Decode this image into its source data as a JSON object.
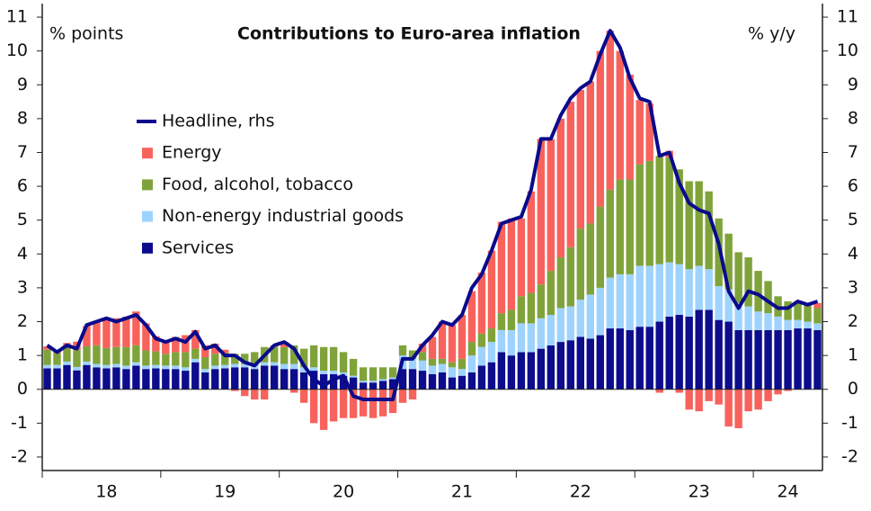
{
  "chart_data": {
    "type": "bar",
    "title": "Contributions to Euro-area inflation",
    "ylabel": "% points",
    "y2label": "% y/y",
    "categories": [
      null,
      null,
      null,
      null,
      null,
      null,
      "18",
      null,
      null,
      null,
      null,
      null,
      null,
      null,
      null,
      null,
      null,
      null,
      "19",
      null,
      null,
      null,
      null,
      null,
      null,
      null,
      null,
      null,
      null,
      null,
      "20",
      null,
      null,
      null,
      null,
      null,
      null,
      null,
      null,
      null,
      null,
      null,
      "21",
      null,
      null,
      null,
      null,
      null,
      null,
      null,
      null,
      null,
      null,
      null,
      "22",
      null,
      null,
      null,
      null,
      null,
      null,
      null,
      null,
      null,
      null,
      null,
      "23",
      null,
      null,
      null,
      null,
      null,
      null,
      null,
      null,
      "24",
      null,
      null,
      null
    ],
    "ylim": [
      -2.4,
      11.4
    ],
    "yticks": [
      -2,
      -1,
      0,
      1,
      2,
      3,
      4,
      5,
      6,
      7,
      8,
      9,
      10,
      11
    ],
    "y2lim": [
      -2.4,
      11.4
    ],
    "y2ticks": [
      -2,
      -1,
      0,
      1,
      2,
      3,
      4,
      5,
      6,
      7,
      8,
      9,
      10,
      11
    ],
    "series": [
      {
        "name": "Headline, rhs",
        "color": "#0a0a8c",
        "axis": "y2",
        "values": [
          1.3,
          1.1,
          1.3,
          1.2,
          1.9,
          2.0,
          2.1,
          2.0,
          2.1,
          2.2,
          1.9,
          1.5,
          1.4,
          1.5,
          1.4,
          1.7,
          1.2,
          1.3,
          1.0,
          1.0,
          0.8,
          0.7,
          1.0,
          1.3,
          1.4,
          1.2,
          0.7,
          0.3,
          0.1,
          0.3,
          0.4,
          -0.2,
          -0.3,
          -0.3,
          -0.3,
          -0.3,
          0.9,
          0.9,
          1.3,
          1.6,
          2.0,
          1.9,
          2.2,
          3.0,
          3.4,
          4.1,
          4.9,
          5.0,
          5.1,
          5.9,
          7.4,
          7.4,
          8.1,
          8.6,
          8.9,
          9.1,
          9.9,
          10.6,
          10.1,
          9.2,
          8.6,
          8.5,
          6.9,
          7.0,
          6.1,
          5.5,
          5.3,
          5.2,
          4.3,
          2.9,
          2.4,
          2.9,
          2.8,
          2.6,
          2.4,
          2.4,
          2.6,
          2.5,
          2.6
        ]
      },
      {
        "name": "Energy",
        "color": "#f8625c",
        "values": [
          0.1,
          0.05,
          0.1,
          0.25,
          0.6,
          0.7,
          0.9,
          0.85,
          0.9,
          1.0,
          0.8,
          0.45,
          0.35,
          0.45,
          0.5,
          0.55,
          0.35,
          0.3,
          0.1,
          -0.05,
          -0.2,
          -0.3,
          -0.3,
          0.05,
          0.15,
          -0.1,
          -0.4,
          -1.0,
          -1.2,
          -0.95,
          -0.85,
          -0.85,
          -0.8,
          -0.85,
          -0.8,
          -0.7,
          -0.4,
          -0.3,
          0.25,
          0.65,
          1.1,
          1.1,
          1.3,
          1.5,
          1.8,
          2.3,
          2.7,
          2.7,
          2.3,
          3.0,
          4.3,
          3.9,
          4.1,
          4.3,
          4.1,
          4.2,
          4.6,
          4.7,
          3.8,
          3.1,
          1.9,
          1.7,
          -0.1,
          0.2,
          -0.1,
          -0.6,
          -0.65,
          -0.35,
          -0.45,
          -1.1,
          -1.15,
          -0.65,
          -0.6,
          -0.35,
          -0.15,
          -0.05,
          0.05,
          0.05,
          0.15
        ]
      },
      {
        "name": "Food, alcohol, tobacco",
        "color": "#7fa33a",
        "values": [
          0.45,
          0.35,
          0.45,
          0.5,
          0.45,
          0.55,
          0.5,
          0.5,
          0.55,
          0.5,
          0.45,
          0.4,
          0.35,
          0.4,
          0.45,
          0.3,
          0.35,
          0.35,
          0.35,
          0.3,
          0.3,
          0.4,
          0.45,
          0.45,
          0.5,
          0.55,
          0.55,
          0.65,
          0.7,
          0.7,
          0.6,
          0.5,
          0.4,
          0.4,
          0.35,
          0.3,
          0.3,
          0.25,
          0.25,
          0.2,
          0.15,
          0.15,
          0.3,
          0.4,
          0.4,
          0.4,
          0.5,
          0.6,
          0.8,
          0.9,
          1.0,
          1.3,
          1.5,
          1.75,
          2.1,
          2.1,
          2.4,
          2.6,
          2.8,
          2.8,
          3.0,
          3.1,
          3.2,
          3.1,
          2.8,
          2.6,
          2.5,
          2.3,
          2.0,
          1.65,
          1.5,
          1.45,
          1.2,
          0.95,
          0.6,
          0.55,
          0.5,
          0.5,
          0.45
        ]
      },
      {
        "name": "Non-energy industrial goods",
        "color": "#9fd3ff",
        "values": [
          0.1,
          0.1,
          0.1,
          0.1,
          0.1,
          0.1,
          0.1,
          0.1,
          0.1,
          0.1,
          0.1,
          0.1,
          0.1,
          0.1,
          0.1,
          0.1,
          0.1,
          0.1,
          0.1,
          0.1,
          0.1,
          0.1,
          0.1,
          0.1,
          0.15,
          0.15,
          0.15,
          0.1,
          0.1,
          0.1,
          0.1,
          0.05,
          0.05,
          0.05,
          0.05,
          0.05,
          0.4,
          0.3,
          0.3,
          0.25,
          0.25,
          0.3,
          0.2,
          0.5,
          0.55,
          0.6,
          0.65,
          0.75,
          0.85,
          0.85,
          0.9,
          0.9,
          1.0,
          1.0,
          1.1,
          1.3,
          1.4,
          1.5,
          1.6,
          1.65,
          1.8,
          1.8,
          1.7,
          1.6,
          1.5,
          1.4,
          1.3,
          1.2,
          1.0,
          0.95,
          0.8,
          0.7,
          0.55,
          0.5,
          0.4,
          0.3,
          0.25,
          0.2,
          0.2
        ]
      },
      {
        "name": "Services",
        "color": "#0c0c8c",
        "values": [
          0.62,
          0.62,
          0.72,
          0.56,
          0.72,
          0.65,
          0.62,
          0.65,
          0.6,
          0.7,
          0.6,
          0.62,
          0.6,
          0.6,
          0.55,
          0.8,
          0.5,
          0.6,
          0.62,
          0.65,
          0.65,
          0.6,
          0.7,
          0.7,
          0.6,
          0.6,
          0.5,
          0.55,
          0.45,
          0.45,
          0.4,
          0.35,
          0.2,
          0.2,
          0.25,
          0.3,
          0.6,
          0.6,
          0.55,
          0.45,
          0.5,
          0.35,
          0.4,
          0.5,
          0.7,
          0.8,
          1.1,
          1.0,
          1.1,
          1.1,
          1.2,
          1.3,
          1.4,
          1.45,
          1.55,
          1.5,
          1.6,
          1.8,
          1.8,
          1.75,
          1.85,
          1.85,
          2.0,
          2.15,
          2.2,
          2.15,
          2.35,
          2.35,
          2.05,
          2.0,
          1.75,
          1.75,
          1.75,
          1.75,
          1.75,
          1.75,
          1.8,
          1.8,
          1.75
        ]
      }
    ]
  }
}
